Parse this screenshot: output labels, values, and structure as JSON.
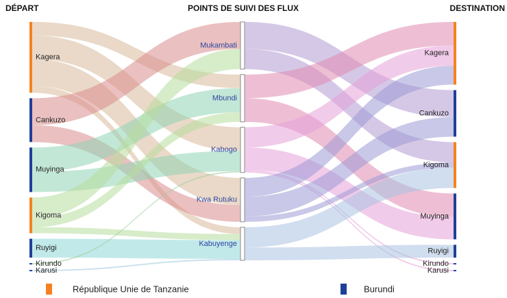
{
  "chart_data": {
    "type": "sankey",
    "columns": [
      {
        "title": "DÉPART",
        "nodes": [
          {
            "name": "Kagera",
            "color": "#f58220",
            "flow_color": "#d9b99b",
            "flows": [
              {
                "to": "Mbundi",
                "value": 20
              },
              {
                "to": "Kabogo",
                "value": 35
              },
              {
                "to": "Kwa Rutuku",
                "value": 40
              },
              {
                "to": "Kabuyenge",
                "value": 10
              }
            ]
          },
          {
            "name": "Cankuzo",
            "color": "#1f3f99",
            "flow_color": "#d98c8c",
            "flows": [
              {
                "to": "Mukambati",
                "value": 40
              },
              {
                "to": "Kwa Rutuku",
                "value": 25
              }
            ]
          },
          {
            "name": "Muyinga",
            "color": "#1f3f99",
            "flow_color": "#8fd4b4",
            "flows": [
              {
                "to": "Mbundi",
                "value": 36
              },
              {
                "to": "Kabogo",
                "value": 30
              }
            ]
          },
          {
            "name": "Kigoma",
            "color": "#f58220",
            "flow_color": "#b7dd9c",
            "flows": [
              {
                "to": "Mukambati",
                "value": 30
              },
              {
                "to": "Mbundi",
                "value": 14
              },
              {
                "to": "Kabuyenge",
                "value": 9
              }
            ]
          },
          {
            "name": "Ruyigi",
            "color": "#1f3f99",
            "flow_color": "#8fd7d7",
            "flows": [
              {
                "to": "Kabuyenge",
                "value": 28
              }
            ]
          },
          {
            "name": "Kirundo",
            "color": "#1f3f99",
            "flow_color": "#9ccf9c",
            "flows": [
              {
                "to": "Kabogo",
                "value": 2
              }
            ]
          },
          {
            "name": "Karusi",
            "color": "#1f3f99",
            "flow_color": "#9fc7e0",
            "flows": [
              {
                "to": "Kabuyenge",
                "value": 2
              }
            ]
          }
        ]
      },
      {
        "title": "POINTS DE SUIVI DES FLUX",
        "nodes": [
          {
            "name": "Mukambati",
            "color": "#ffffff",
            "flow_color": "#b39bd1",
            "flows": [
              {
                "to": "Cankuzo",
                "value": 40
              },
              {
                "to": "Kigoma",
                "value": 30
              }
            ]
          },
          {
            "name": "Mbundi",
            "color": "#ffffff",
            "flow_color": "#e08ab0",
            "flows": [
              {
                "to": "Kagera",
                "value": 35
              },
              {
                "to": "Muyinga",
                "value": 35
              }
            ]
          },
          {
            "name": "Kabogo",
            "color": "#ffffff",
            "flow_color": "#e6a0d8",
            "flows": [
              {
                "to": "Kagera",
                "value": 30
              },
              {
                "to": "Muyinga",
                "value": 33
              },
              {
                "to": "Kirundo",
                "value": 2
              },
              {
                "to": "Karusi",
                "value": 2
              }
            ]
          },
          {
            "name": "Kwa Rutuku",
            "color": "#ffffff",
            "flow_color": "#9d9ad6",
            "flows": [
              {
                "to": "Kagera",
                "value": 28
              },
              {
                "to": "Cankuzo",
                "value": 29
              },
              {
                "to": "Kigoma",
                "value": 8
              }
            ]
          },
          {
            "name": "Kabuyenge",
            "color": "#ffffff",
            "flow_color": "#a9c2e2",
            "flows": [
              {
                "to": "Kigoma",
                "value": 30
              },
              {
                "to": "Ruyigi",
                "value": 19
              }
            ]
          }
        ]
      },
      {
        "title": "DESTINATION",
        "nodes": [
          {
            "name": "Kagera",
            "color": "#f58220",
            "flows": []
          },
          {
            "name": "Cankuzo",
            "color": "#1f3f99",
            "flows": []
          },
          {
            "name": "Kigoma",
            "color": "#f58220",
            "flows": []
          },
          {
            "name": "Muyinga",
            "color": "#1f3f99",
            "flows": []
          },
          {
            "name": "Ruyigi",
            "color": "#1f3f99",
            "flows": []
          },
          {
            "name": "Kirundo",
            "color": "#1f3f99",
            "flows": []
          },
          {
            "name": "Karusi",
            "color": "#1f3f99",
            "flows": []
          }
        ]
      }
    ],
    "legend": [
      {
        "name": "République Unie de Tanzanie",
        "color": "#f58220"
      },
      {
        "name": "Burundi",
        "color": "#1f3f99"
      }
    ]
  }
}
